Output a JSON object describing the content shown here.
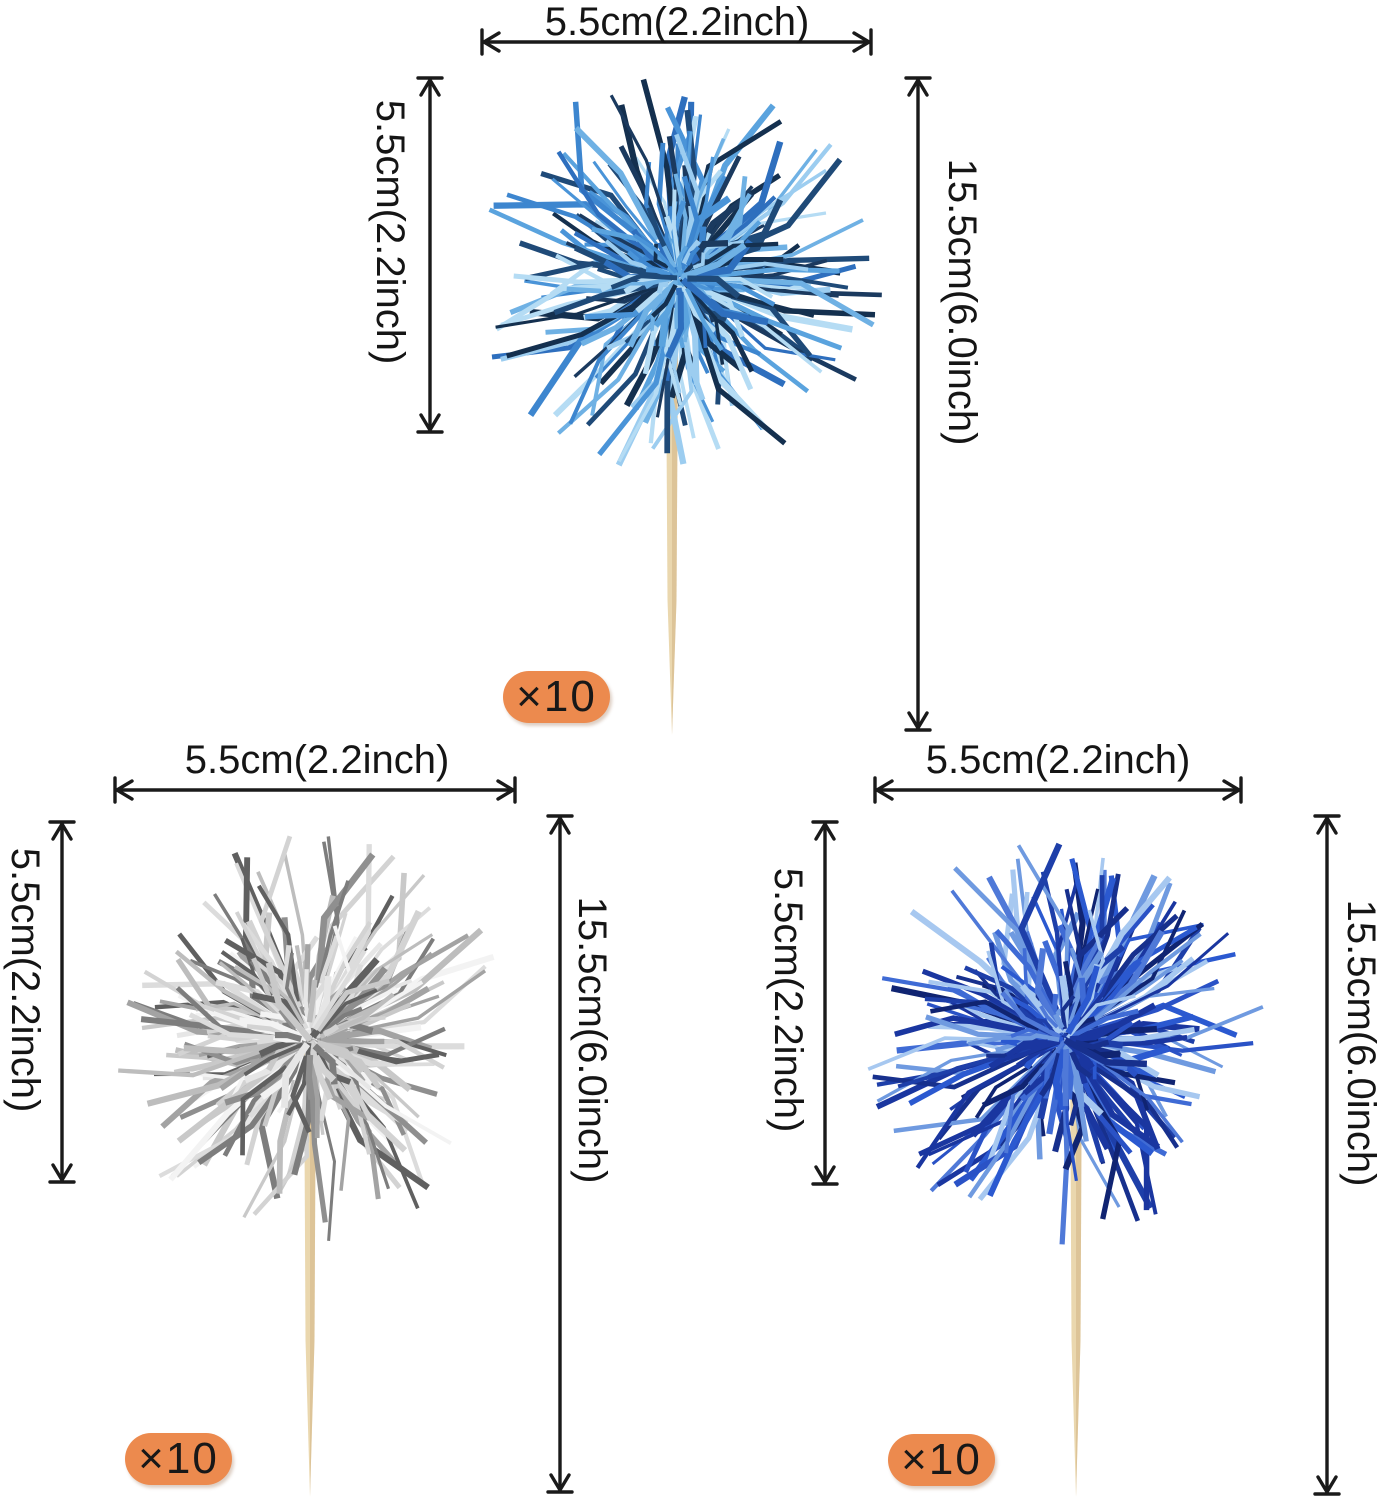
{
  "diagram_title": "tinsel pom-pom cupcake topper size chart",
  "line_color": "#1a1a1a",
  "text_color": "#151515",
  "badge": {
    "background": "#ec8a4e",
    "text_color": "#181818"
  },
  "stick_colors": {
    "light": "#ead7ae",
    "dark": "#cfae7e"
  },
  "figures": [
    {
      "id": "light-blue",
      "variant": "light blue tinsel topper",
      "width_label": "5.5cm(2.2inch)",
      "pom_height_label": "5.5cm(2.2inch)",
      "total_height_label": "15.5cm(6.0inch)",
      "quantity_label": "×10",
      "strand_colors": [
        "#6fb1e4",
        "#4a94d8",
        "#2e6fbe",
        "#9ccdf0",
        "#1b3a5f",
        "#14304f",
        "#5aa3de",
        "#b5dcf4",
        "#3d86cf",
        "#1f4a78"
      ],
      "seed": 7
    },
    {
      "id": "silver",
      "variant": "silver tinsel topper",
      "width_label": "5.5cm(2.2inch)",
      "pom_height_label": "5.5cm(2.2inch)",
      "total_height_label": "15.5cm(6.0inch)",
      "quantity_label": "×10",
      "strand_colors": [
        "#f3f3f3",
        "#e6e6e6",
        "#d3d3d3",
        "#bdbdbd",
        "#a3a3a3",
        "#7d7d7d",
        "#606060",
        "#dcdcdc",
        "#c9c9c9",
        "#8f8f8f"
      ],
      "seed": 13
    },
    {
      "id": "royal-blue",
      "variant": "royal blue tinsel topper",
      "width_label": "5.5cm(2.2inch)",
      "pom_height_label": "5.5cm(2.2inch)",
      "total_height_label": "15.5cm(6.0inch)",
      "quantity_label": "×10",
      "strand_colors": [
        "#2a52c6",
        "#1e3fa9",
        "#3f6bd5",
        "#17308d",
        "#6f9ae0",
        "#a7c8f0",
        "#102472",
        "#4f79d8",
        "#2b59d0",
        "#1a36a0"
      ],
      "seed": 29
    }
  ]
}
